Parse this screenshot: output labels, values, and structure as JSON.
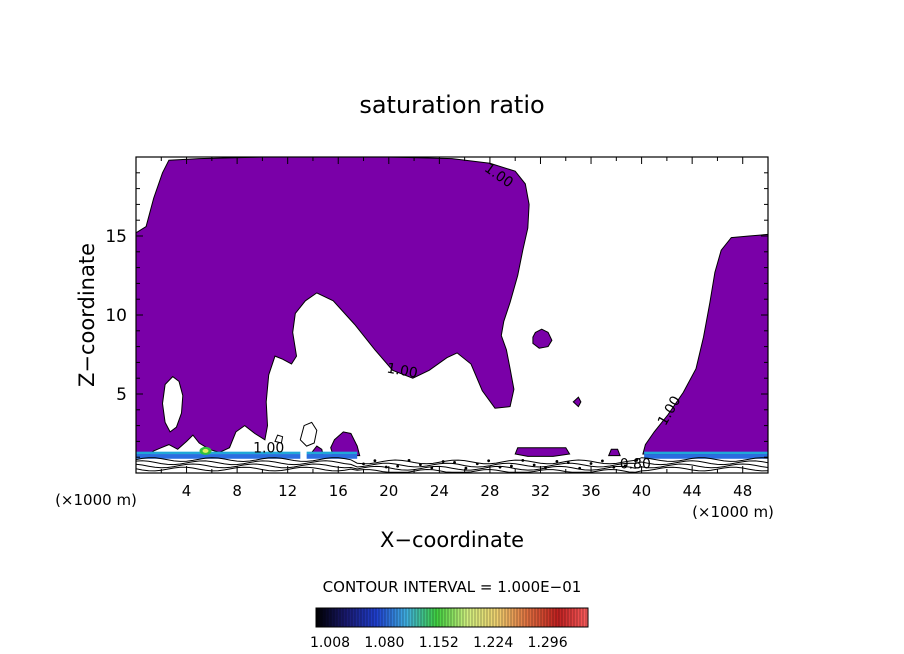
{
  "chart_data": {
    "type": "contour",
    "title": "saturation ratio",
    "xlabel": "X−coordinate",
    "ylabel": "Z−coordinate",
    "xlim": [
      0,
      50
    ],
    "ylim": [
      0,
      20
    ],
    "x_unit_left": "(×1000 m)",
    "x_unit_right": "(×1000 m)",
    "x_ticks": [
      {
        "value": 4,
        "label": "4"
      },
      {
        "value": 8,
        "label": "8"
      },
      {
        "value": 12,
        "label": "12"
      },
      {
        "value": 16,
        "label": "16"
      },
      {
        "value": 20,
        "label": "20"
      },
      {
        "value": 24,
        "label": "24"
      },
      {
        "value": 28,
        "label": "28"
      },
      {
        "value": 32,
        "label": "32"
      },
      {
        "value": 36,
        "label": "36"
      },
      {
        "value": 40,
        "label": "40"
      },
      {
        "value": 44,
        "label": "44"
      },
      {
        "value": 48,
        "label": "48"
      }
    ],
    "y_ticks": [
      {
        "value": 5,
        "label": "5"
      },
      {
        "value": 10,
        "label": "10"
      },
      {
        "value": 15,
        "label": "15"
      }
    ],
    "fill_color": "#7a00a8",
    "contour_labels": [
      {
        "text": "1.00",
        "x": 28.5,
        "z": 18.6,
        "rot": 35
      },
      {
        "text": "1.00",
        "x": 21.0,
        "z": 6.2,
        "rot": 10
      },
      {
        "text": "1.00",
        "x": 42.5,
        "z": 3.8,
        "rot": -60
      },
      {
        "text": "1.00",
        "x": 10.5,
        "z": 1.3,
        "rot": 0
      },
      {
        "text": "0.80",
        "x": 39.5,
        "z": 0.3,
        "rot": 0
      }
    ],
    "contour_interval_text": "CONTOUR INTERVAL = 1.000E−01",
    "colorbar": {
      "min": 1.008,
      "max": 1.296,
      "ticks": [
        "1.008",
        "1.080",
        "1.152",
        "1.224",
        "1.296"
      ],
      "colors": [
        "#000000",
        "#1a1a70",
        "#2040d0",
        "#40b0e0",
        "#40d040",
        "#d0f080",
        "#f0d070",
        "#e07040",
        "#c02020",
        "#ff6060"
      ]
    }
  }
}
